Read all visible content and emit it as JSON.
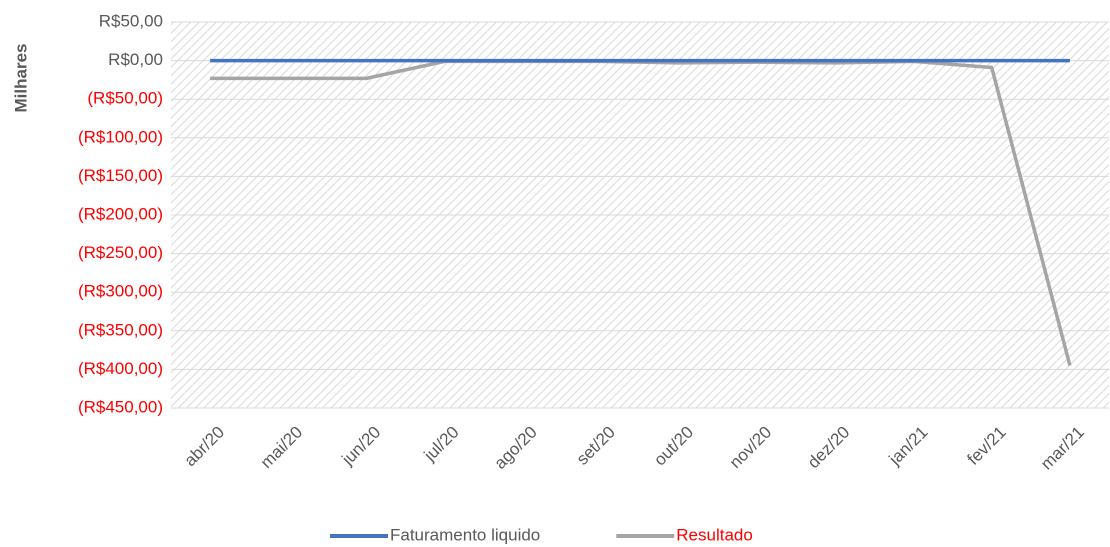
{
  "chart_data": {
    "type": "line",
    "y_axis_label": "Milhares",
    "categories": [
      "abr/20",
      "mai/20",
      "jun/20",
      "jul/20",
      "ago/20",
      "set/20",
      "out/20",
      "nov/20",
      "dez/20",
      "jan/21",
      "fev/21",
      "mar/21"
    ],
    "series": [
      {
        "name": "Faturamento liquido",
        "color": "#4472c4",
        "label_color": "#595959",
        "values": [
          0,
          0,
          0,
          0,
          0,
          0,
          0,
          0,
          0,
          0,
          0,
          0
        ]
      },
      {
        "name": "Resultado",
        "color": "#a5a5a5",
        "label_color": "#ff0000",
        "values": [
          -23,
          -23,
          -23,
          -1,
          -1,
          -1,
          -3,
          -2,
          -3,
          -1,
          -9,
          -395
        ]
      }
    ],
    "ylim": [
      -450,
      50
    ],
    "yticks": [
      {
        "value": 50,
        "label": "R$50,00"
      },
      {
        "value": 0,
        "label": "R$0,00"
      },
      {
        "value": -50,
        "label": "(R$50,00)"
      },
      {
        "value": -100,
        "label": "(R$100,00)"
      },
      {
        "value": -150,
        "label": "(R$150,00)"
      },
      {
        "value": -200,
        "label": "(R$200,00)"
      },
      {
        "value": -250,
        "label": "(R$250,00)"
      },
      {
        "value": -300,
        "label": "(R$300,00)"
      },
      {
        "value": -350,
        "label": "(R$350,00)"
      },
      {
        "value": -400,
        "label": "(R$400,00)"
      },
      {
        "value": -450,
        "label": "(R$450,00)"
      }
    ],
    "tick_label_color": "#595959",
    "negative_tick_label_color": "#ff0000",
    "grid": true,
    "legend": "bottom"
  }
}
